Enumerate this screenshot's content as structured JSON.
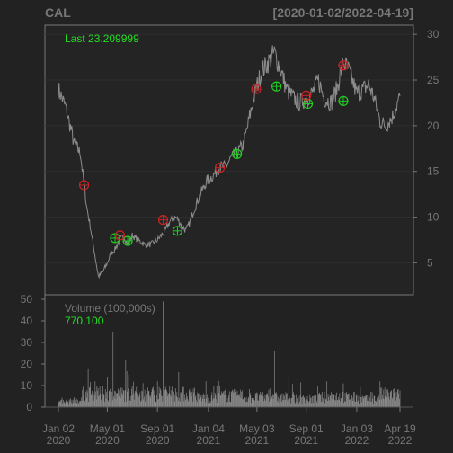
{
  "colors": {
    "background": "#222222",
    "frame": "#777777",
    "grid": "#2e2e2e",
    "price_line": "#8c8c8c",
    "volume_bar": "#8a8a8a",
    "buy_marker": "#22cc22",
    "sell_marker": "#cc2222",
    "legend_text": "#22dd22",
    "axis_text": "#777777"
  },
  "chart_data": {
    "type": "line",
    "title": "CAL",
    "date_range_label": "[2020-01-02/2022-04-19]",
    "price_panel": {
      "legend": "Last 23.209999",
      "ylim": [
        1.5,
        31
      ],
      "yticks": [
        5,
        10,
        15,
        20,
        25,
        30
      ],
      "ytick_labels": [
        "5",
        "10",
        "15",
        "20",
        "25",
        "30"
      ],
      "grid": true,
      "series": [
        {
          "x": [
            "2020-01-02",
            "2020-01-20",
            "2020-02-10",
            "2020-02-25",
            "2020-03-05",
            "2020-03-12",
            "2020-03-20",
            "2020-03-31",
            "2020-04-09",
            "2020-04-20",
            "2020-05-01",
            "2020-05-10",
            "2020-05-20",
            "2020-06-01",
            "2020-06-10",
            "2020-06-20",
            "2020-07-01",
            "2020-07-15",
            "2020-08-01",
            "2020-08-15",
            "2020-09-01",
            "2020-09-20",
            "2020-10-01",
            "2020-10-15",
            "2020-10-20",
            "2020-11-01",
            "2020-11-10",
            "2020-11-20",
            "2020-12-01",
            "2020-12-15",
            "2021-01-01",
            "2021-01-15",
            "2021-02-01",
            "2021-02-15",
            "2021-03-01",
            "2021-03-15",
            "2021-04-01",
            "2021-04-15",
            "2021-05-01",
            "2021-05-15",
            "2021-06-01",
            "2021-06-15",
            "2021-07-01",
            "2021-07-15",
            "2021-08-01",
            "2021-08-15",
            "2021-09-01",
            "2021-09-15",
            "2021-10-01",
            "2021-10-15",
            "2021-11-01",
            "2021-11-15",
            "2021-12-01",
            "2021-12-15",
            "2022-01-03",
            "2022-01-20",
            "2022-02-01",
            "2022-02-15",
            "2022-03-01",
            "2022-03-15",
            "2022-04-01",
            "2022-04-19"
          ],
          "y": [
            24,
            22,
            18,
            17,
            13.5,
            11,
            9,
            6,
            3.5,
            4,
            5,
            6,
            6.5,
            7.5,
            8,
            7,
            8,
            7.5,
            7,
            7,
            7.5,
            8.5,
            9.5,
            10,
            9.8,
            9,
            8.5,
            9.5,
            11,
            12.5,
            14,
            14.5,
            15.5,
            15.5,
            16.5,
            17,
            18,
            21,
            24,
            26,
            27,
            28,
            26,
            24,
            23,
            22.5,
            23,
            23.5,
            25,
            23,
            22.5,
            24,
            27,
            26,
            23.5,
            24,
            24.5,
            23,
            20.5,
            20,
            21,
            23.21
          ]
        }
      ],
      "buy_markers": [
        {
          "x": "2020-05-20",
          "y": 7.7
        },
        {
          "x": "2020-06-20",
          "y": 7.4
        },
        {
          "x": "2020-10-20",
          "y": 8.5
        },
        {
          "x": "2021-03-15",
          "y": 16.9
        },
        {
          "x": "2021-06-20",
          "y": 24.3
        },
        {
          "x": "2021-09-05",
          "y": 22.4
        },
        {
          "x": "2021-12-01",
          "y": 22.7
        }
      ],
      "sell_markers": [
        {
          "x": "2020-03-05",
          "y": 13.5
        },
        {
          "x": "2020-06-01",
          "y": 8.0
        },
        {
          "x": "2020-09-15",
          "y": 9.7
        },
        {
          "x": "2021-02-01",
          "y": 15.4
        },
        {
          "x": "2021-05-01",
          "y": 24.0
        },
        {
          "x": "2021-09-01",
          "y": 23.3
        },
        {
          "x": "2021-12-01",
          "y": 26.6
        }
      ]
    },
    "volume_panel": {
      "legend_title": "Volume (100,000s)",
      "legend_value": "770,100",
      "ylim": [
        0,
        50
      ],
      "yticks": [
        0,
        10,
        20,
        30,
        40,
        50
      ],
      "ytick_labels": [
        "0",
        "10",
        "20",
        "30",
        "40",
        "50"
      ],
      "series": [
        {
          "x": [
            "2020-01-02",
            "2020-02-01",
            "2020-03-01",
            "2020-03-15",
            "2020-04-01",
            "2020-04-20",
            "2020-05-01",
            "2020-05-15",
            "2020-06-01",
            "2020-06-15",
            "2020-07-01",
            "2020-08-01",
            "2020-09-01",
            "2020-09-15",
            "2020-10-01",
            "2020-11-01",
            "2020-12-01",
            "2021-01-01",
            "2021-02-01",
            "2021-03-01",
            "2021-04-01",
            "2021-05-01",
            "2021-06-01",
            "2021-06-15",
            "2021-07-01",
            "2021-08-01",
            "2021-09-01",
            "2021-10-01",
            "2021-11-01",
            "2021-12-01",
            "2022-01-03",
            "2022-02-01",
            "2022-03-01",
            "2022-04-19"
          ],
          "values": [
            3,
            4,
            8,
            18,
            12,
            10,
            14,
            35,
            12,
            22,
            10,
            8,
            12,
            49,
            10,
            8,
            9,
            6,
            10,
            7,
            9,
            6,
            8,
            26,
            6,
            7,
            5,
            6,
            7,
            11,
            6,
            5,
            12,
            7.7
          ]
        }
      ]
    },
    "xticks": {
      "dates": [
        "2020-01-02",
        "2020-05-01",
        "2020-09-01",
        "2021-01-04",
        "2021-05-03",
        "2021-09-01",
        "2022-01-03",
        "2022-04-19"
      ],
      "labels_month": [
        "Jan 02",
        "May 01",
        "Sep 01",
        "Jan 04",
        "May 03",
        "Sep 01",
        "Jan 03",
        "Apr 19"
      ],
      "labels_year": [
        "2020",
        "2020",
        "2020",
        "2021",
        "2021",
        "2021",
        "2022",
        "2022"
      ]
    }
  }
}
